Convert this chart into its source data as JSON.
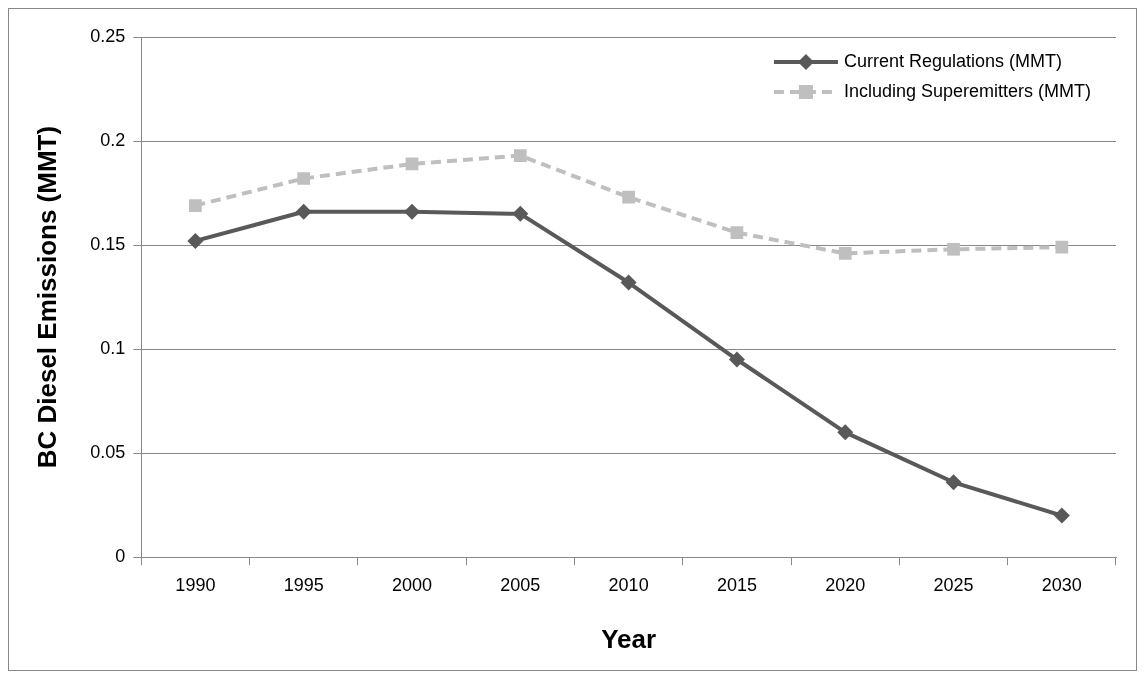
{
  "chart_data": {
    "type": "line",
    "xlabel": "Year",
    "ylabel": "BC Diesel Emissions (MMT)",
    "categories": [
      "1990",
      "1995",
      "2000",
      "2005",
      "2010",
      "2015",
      "2020",
      "2025",
      "2030"
    ],
    "series": [
      {
        "name": "Current Regulations (MMT)",
        "color": "#595959",
        "marker": "diamond",
        "line_style": "solid",
        "values": [
          0.152,
          0.166,
          0.166,
          0.165,
          0.132,
          0.095,
          0.06,
          0.036,
          0.02
        ]
      },
      {
        "name": "Including Superemitters (MMT)",
        "color": "#bfbfbf",
        "marker": "square",
        "line_style": "dashed",
        "values": [
          0.169,
          0.182,
          0.189,
          0.193,
          0.173,
          0.156,
          0.146,
          0.148,
          0.149
        ]
      }
    ],
    "ylim": [
      0,
      0.25
    ],
    "yticks": [
      0,
      0.05,
      0.1,
      0.15,
      0.2,
      0.25
    ],
    "grid": "y",
    "legend": "top right"
  }
}
